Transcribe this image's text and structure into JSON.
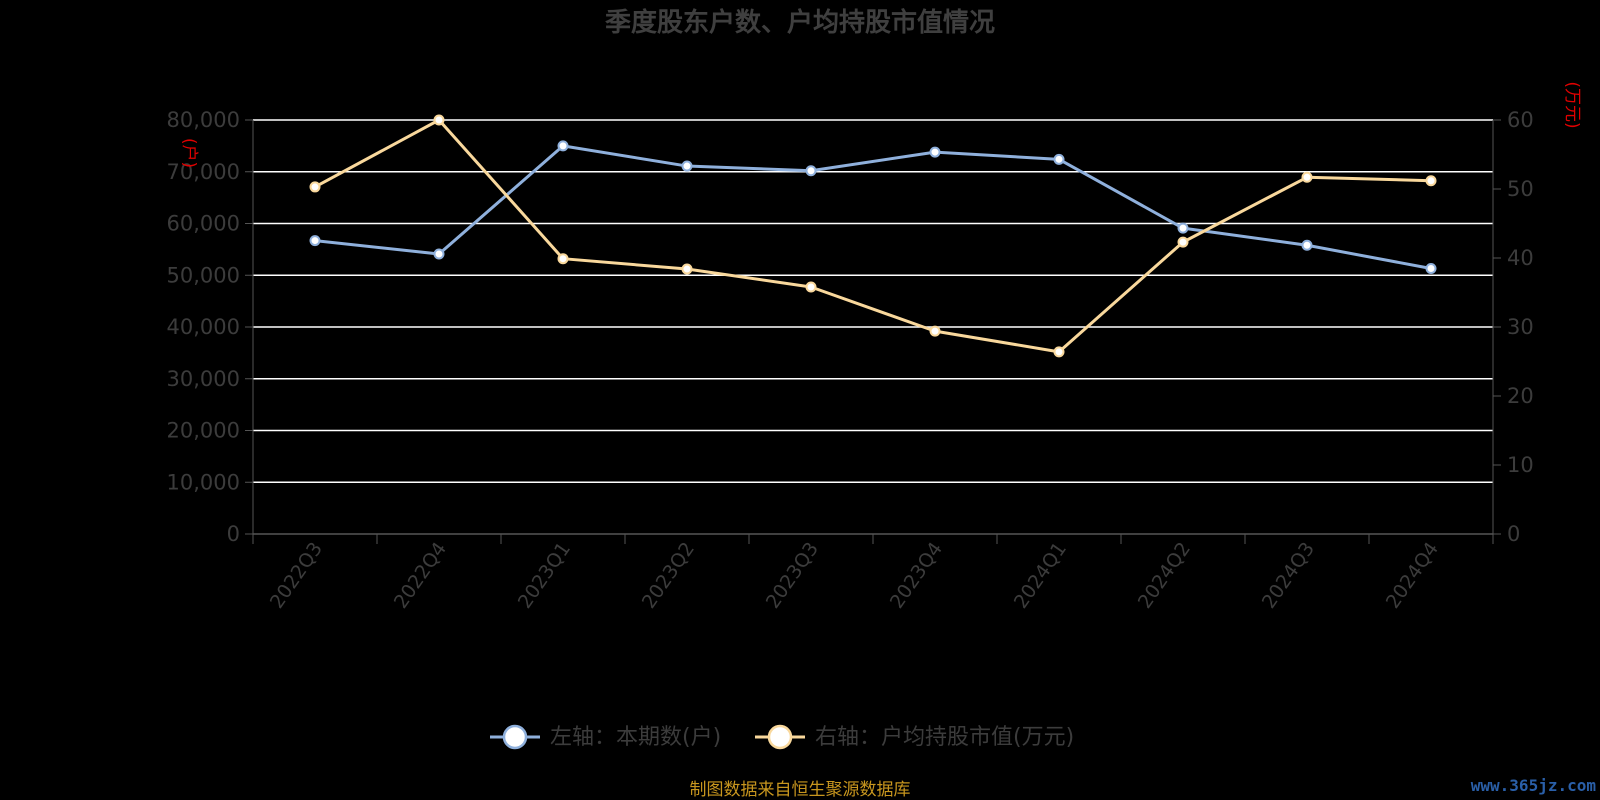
{
  "chart_data": {
    "type": "line",
    "title": "季度股东户数、户均持股市值情况",
    "categories": [
      "2022Q3",
      "2022Q4",
      "2023Q1",
      "2023Q2",
      "2023Q3",
      "2023Q4",
      "2024Q1",
      "2024Q2",
      "2024Q3",
      "2024Q4"
    ],
    "y_left": {
      "unit": "(户)",
      "ylim": [
        0,
        80000
      ],
      "ticks": [
        "0",
        "10,000",
        "20,000",
        "30,000",
        "40,000",
        "50,000",
        "60,000",
        "70,000",
        "80,000"
      ]
    },
    "y_right": {
      "unit": "(万元)",
      "ylim": [
        0,
        60
      ],
      "ticks": [
        "0",
        "10",
        "20",
        "30",
        "40",
        "50",
        "60"
      ]
    },
    "series": [
      {
        "name": "左轴：本期数(户)",
        "axis": "left",
        "color": "#8fb0dc",
        "values": [
          56700,
          54100,
          75000,
          71100,
          70200,
          73800,
          72400,
          59100,
          55800,
          51300
        ]
      },
      {
        "name": "右轴：户均持股市值(万元)",
        "axis": "right",
        "color": "#f9d89c",
        "values": [
          50.3,
          60.0,
          39.9,
          38.4,
          35.8,
          29.4,
          26.4,
          42.3,
          51.7,
          51.2
        ]
      }
    ],
    "grid": true,
    "legend_position": "bottom"
  },
  "footer": {
    "source": "制图数据来自恒生聚源数据库",
    "watermark": "www.365jz.com"
  }
}
